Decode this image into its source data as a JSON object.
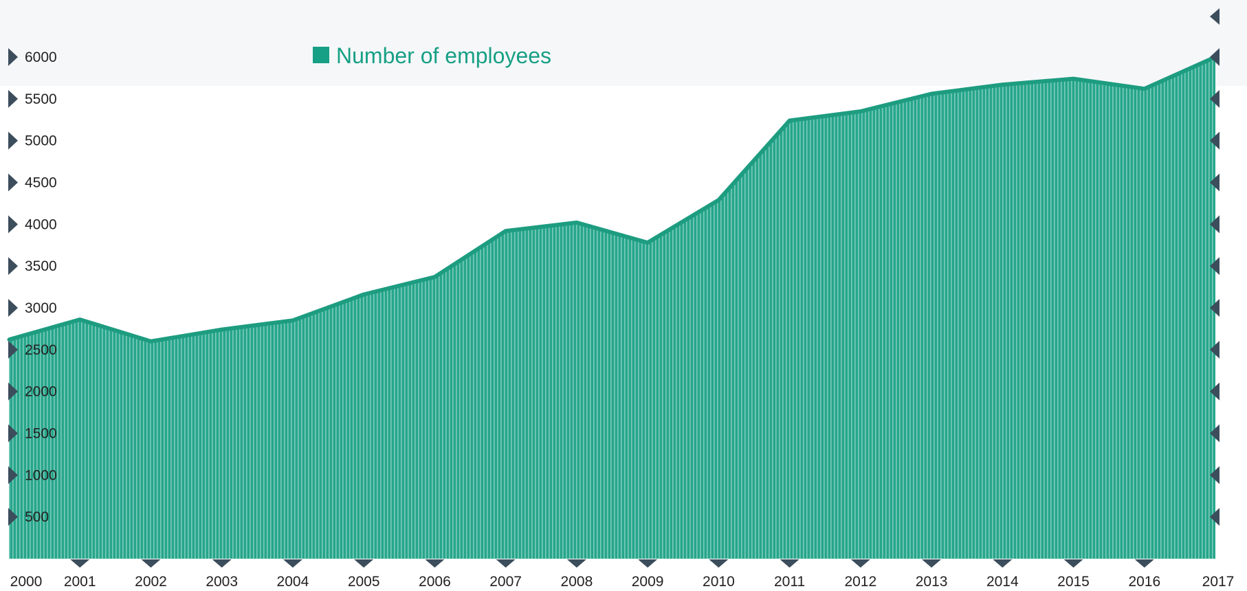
{
  "chart_data": {
    "type": "area",
    "legend": {
      "label": "Number of employees",
      "position": "top"
    },
    "x": [
      "2000",
      "2001",
      "2002",
      "2003",
      "2004",
      "2005",
      "2006",
      "2007",
      "2008",
      "2009",
      "2010",
      "2011",
      "2012",
      "2013",
      "2014",
      "2015",
      "2016",
      "2017"
    ],
    "series": [
      {
        "name": "Number of employees",
        "values": [
          2620,
          2860,
          2600,
          2740,
          2850,
          3160,
          3370,
          3920,
          4020,
          3780,
          4290,
          5240,
          5350,
          5560,
          5670,
          5740,
          5620,
          6000
        ]
      }
    ],
    "y_ticks": [
      "500",
      "1000",
      "1500",
      "2000",
      "2500",
      "3000",
      "3500",
      "4000",
      "4500",
      "5000",
      "5500",
      "6000"
    ],
    "ylim": [
      0,
      6000
    ],
    "grid": false
  },
  "colors": {
    "fill": "#26a68b",
    "stripe": "#e9f6f2",
    "line": "#1d9c80",
    "marker": "#3c4d5c",
    "legend": "#17a085",
    "band": "#f6f7f9"
  }
}
